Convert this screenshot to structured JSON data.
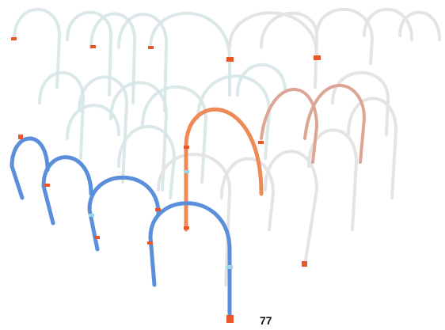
{
  "label": "77"
}
